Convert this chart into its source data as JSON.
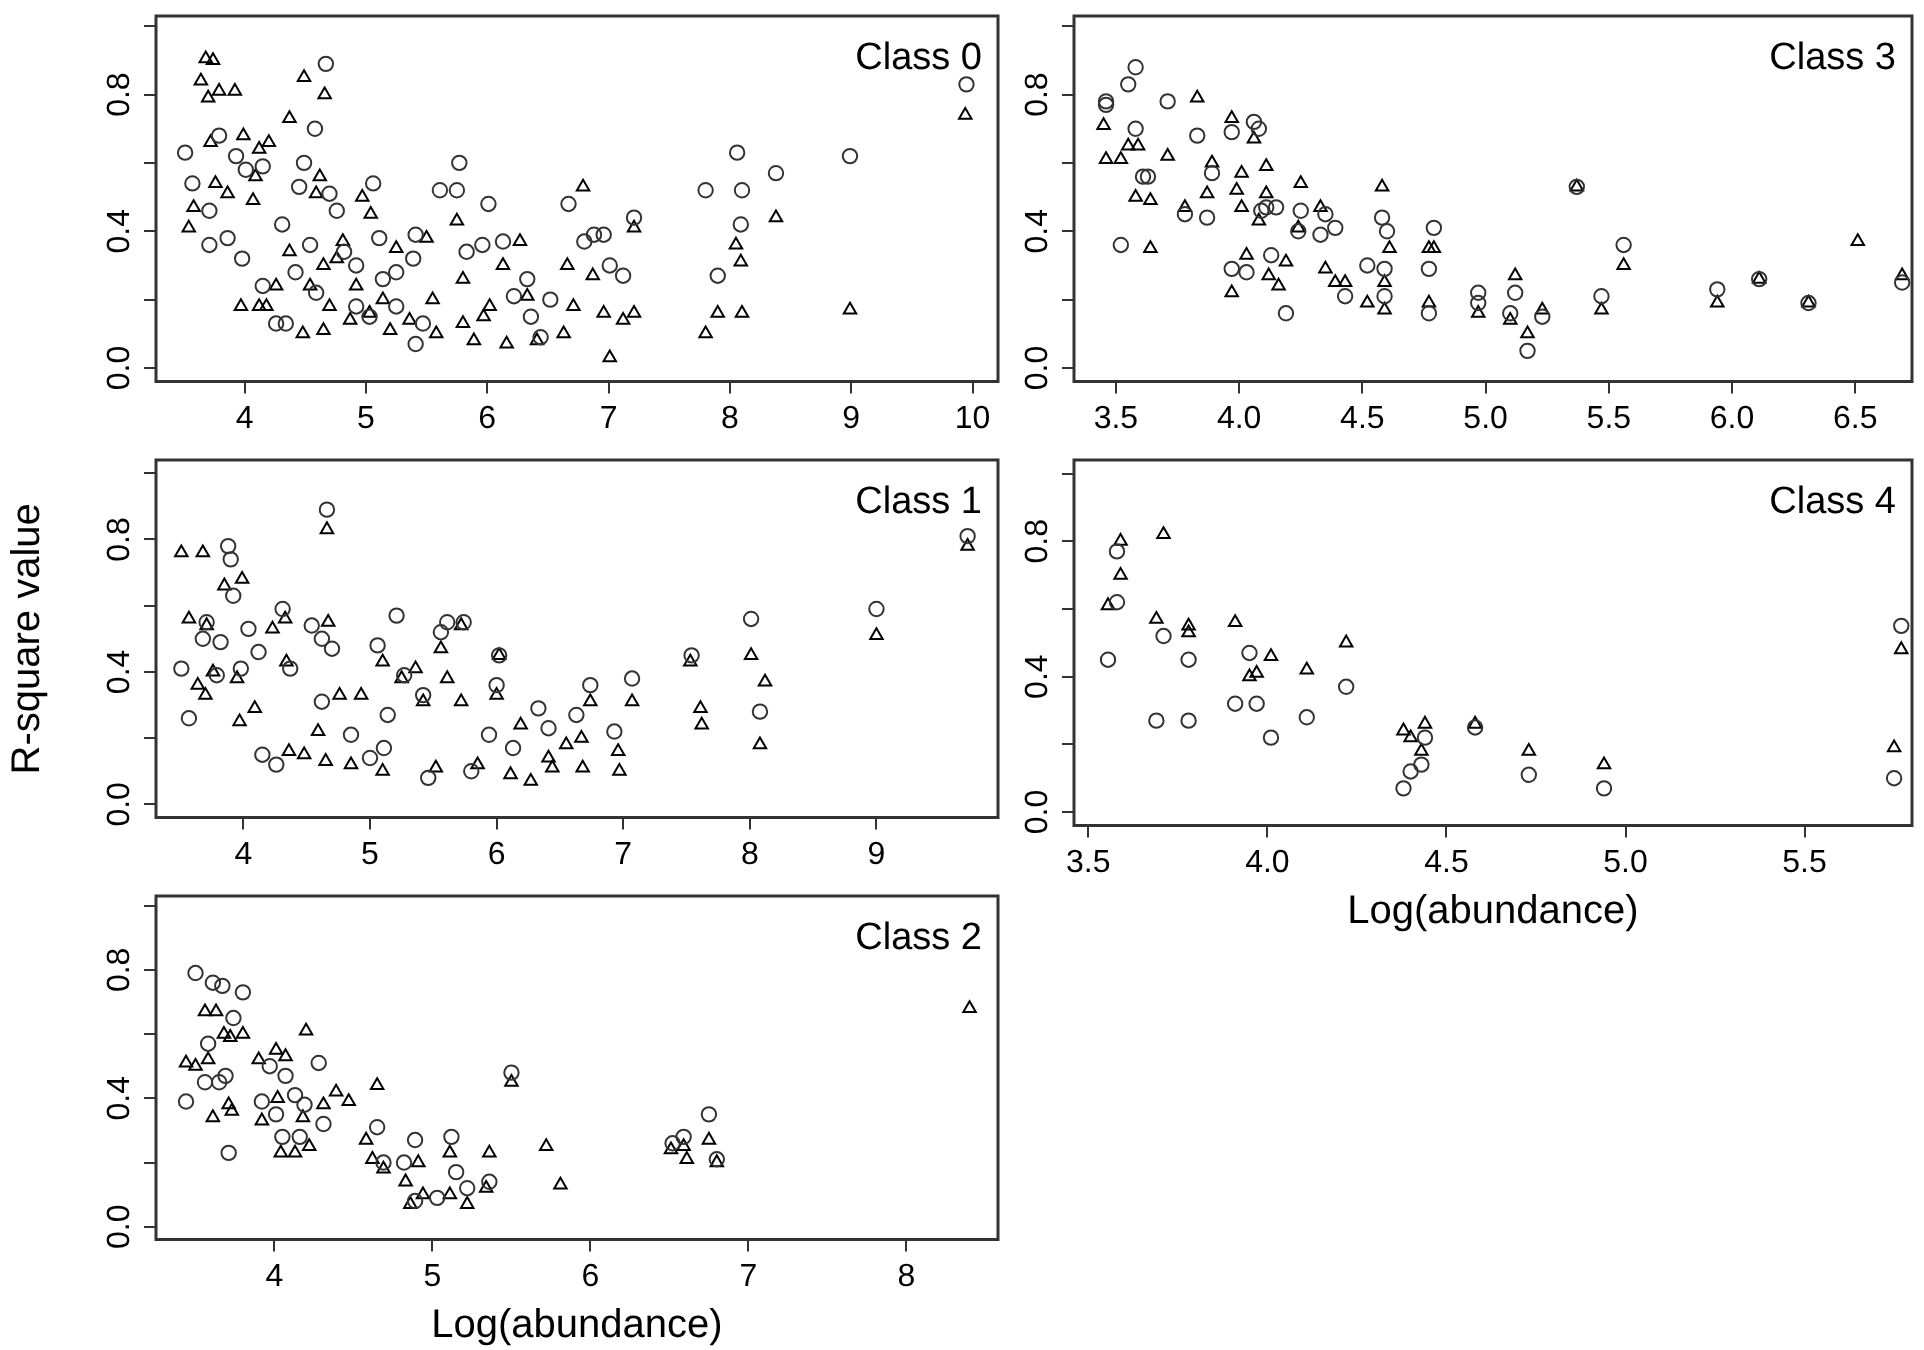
{
  "chart_data": [
    {
      "type": "scatter",
      "annotations": [
        "Class 0"
      ],
      "xlim": [
        3.27,
        10.21
      ],
      "ylim": [
        -0.04,
        1.03
      ],
      "xticks": [
        4,
        5,
        6,
        7,
        8,
        9,
        10
      ],
      "yticks": [
        {
          "value": 0,
          "label": "0.0"
        },
        {
          "value": 0.2,
          "label": null
        },
        {
          "value": 0.4,
          "label": "0.4"
        },
        {
          "value": 0.6,
          "label": null
        },
        {
          "value": 0.8,
          "label": "0.8"
        },
        {
          "value": 1,
          "label": null
        }
      ],
      "grid": false,
      "legend": false,
      "series": [
        {
          "marker": "circle",
          "color": "#333333",
          "x": [
            3.51,
            3.57,
            3.71,
            3.79,
            3.71,
            3.86,
            3.93,
            4.01,
            4.15,
            3.98,
            4.26,
            4.34,
            4.45,
            4.49,
            4.58,
            4.67,
            4.7,
            4.31,
            4.42,
            4.54,
            4.76,
            4.82,
            4.92,
            5.06,
            5.11,
            5.14,
            5.25,
            5.39,
            5.41,
            5.41,
            5.61,
            5.75,
            5.77,
            5.83,
            5.96,
            6.01,
            6.13,
            6.22,
            6.33,
            6.36,
            6.44,
            6.52,
            6.67,
            6.8,
            6.88,
            6.96,
            7.01,
            7.12,
            7.21,
            7.8,
            7.9,
            8.06,
            8.1,
            8.09,
            8.38,
            8.99,
            9.95,
            4.15,
            5.03,
            5.47,
            4.92,
            4.59,
            5.25
          ],
          "values": [
            0.63,
            0.54,
            0.36,
            0.68,
            0.46,
            0.38,
            0.62,
            0.58,
            0.59,
            0.32,
            0.13,
            0.13,
            0.53,
            0.6,
            0.7,
            0.89,
            0.51,
            0.42,
            0.28,
            0.36,
            0.46,
            0.34,
            0.3,
            0.54,
            0.38,
            0.26,
            0.18,
            0.32,
            0.07,
            0.39,
            0.52,
            0.52,
            0.6,
            0.34,
            0.36,
            0.48,
            0.37,
            0.21,
            0.26,
            0.15,
            0.09,
            0.2,
            0.48,
            0.37,
            0.39,
            0.39,
            0.3,
            0.27,
            0.44,
            0.52,
            0.27,
            0.63,
            0.52,
            0.42,
            0.57,
            0.62,
            0.83,
            0.24,
            0.15,
            0.13,
            0.18,
            0.22,
            0.28
          ]
        },
        {
          "marker": "triangle",
          "color": "#000000",
          "x": [
            3.68,
            3.74,
            3.64,
            3.7,
            3.79,
            3.92,
            3.72,
            3.99,
            4.2,
            4.12,
            4.37,
            4.49,
            4.66,
            3.58,
            3.54,
            3.76,
            3.86,
            4.09,
            4.07,
            3.97,
            4.18,
            4.48,
            4.62,
            4.59,
            4.97,
            5.04,
            4.81,
            4.65,
            4.54,
            4.7,
            4.65,
            4.87,
            5.03,
            5.2,
            5.25,
            5.5,
            5.55,
            5.36,
            5.58,
            5.75,
            5.8,
            5.89,
            5.97,
            6.13,
            6.16,
            6.27,
            6.33,
            6.41,
            6.66,
            6.79,
            6.71,
            6.63,
            6.87,
            6.96,
            7.01,
            7.12,
            7.21,
            7.21,
            7.8,
            7.9,
            8.05,
            8.09,
            8.1,
            8.38,
            8.99,
            9.94,
            4.26,
            4.37,
            4.76,
            4.92,
            5.14,
            5.8,
            6.02,
            4.12
          ],
          "values": [
            0.905,
            0.9,
            0.84,
            0.79,
            0.81,
            0.81,
            0.66,
            0.68,
            0.66,
            0.64,
            0.73,
            0.85,
            0.8,
            0.47,
            0.41,
            0.54,
            0.51,
            0.56,
            0.49,
            0.18,
            0.18,
            0.1,
            0.56,
            0.51,
            0.5,
            0.45,
            0.37,
            0.3,
            0.24,
            0.18,
            0.11,
            0.14,
            0.16,
            0.11,
            0.35,
            0.38,
            0.2,
            0.14,
            0.1,
            0.43,
            0.26,
            0.08,
            0.15,
            0.3,
            0.07,
            0.37,
            0.21,
            0.08,
            0.3,
            0.53,
            0.18,
            0.1,
            0.27,
            0.16,
            0.03,
            0.14,
            0.16,
            0.41,
            0.1,
            0.16,
            0.36,
            0.31,
            0.16,
            0.44,
            0.17,
            0.74,
            0.24,
            0.34,
            0.32,
            0.24,
            0.2,
            0.13,
            0.18,
            0.18
          ]
        }
      ]
    },
    {
      "type": "scatter",
      "annotations": [
        "Class 3"
      ],
      "xlim": [
        3.33,
        6.73
      ],
      "ylim": [
        -0.04,
        1.03
      ],
      "xticks": [
        3.5,
        {
          "value": 4,
          "label": "4.0"
        },
        4.5,
        {
          "value": 5,
          "label": "5.0"
        },
        5.5,
        {
          "value": 6,
          "label": "6.0"
        },
        6.5
      ],
      "yticks": [
        {
          "value": 0,
          "label": "0.0"
        },
        {
          "value": 0.2,
          "label": null
        },
        {
          "value": 0.4,
          "label": "0.4"
        },
        {
          "value": 0.6,
          "label": null
        },
        {
          "value": 0.8,
          "label": "0.8"
        },
        {
          "value": 1,
          "label": null
        }
      ],
      "grid": false,
      "legend": false,
      "series": [
        {
          "marker": "circle",
          "color": "#333333",
          "x": [
            3.46,
            3.46,
            3.55,
            3.58,
            3.58,
            3.52,
            3.61,
            3.63,
            3.71,
            3.78,
            3.83,
            3.87,
            3.89,
            3.97,
            3.97,
            4.03,
            4.06,
            4.08,
            4.09,
            4.11,
            4.15,
            4.13,
            4.19,
            4.25,
            4.24,
            4.33,
            4.35,
            4.39,
            4.43,
            4.52,
            4.58,
            4.6,
            4.59,
            4.59,
            4.77,
            4.79,
            4.77,
            4.97,
            4.97,
            5.1,
            5.12,
            5.17,
            5.23,
            5.37,
            5.47,
            5.56,
            5.94,
            6.11,
            6.31,
            6.69
          ],
          "values": [
            0.78,
            0.77,
            0.83,
            0.88,
            0.7,
            0.36,
            0.56,
            0.56,
            0.78,
            0.45,
            0.68,
            0.44,
            0.57,
            0.69,
            0.29,
            0.28,
            0.72,
            0.7,
            0.46,
            0.47,
            0.47,
            0.33,
            0.16,
            0.46,
            0.4,
            0.39,
            0.45,
            0.41,
            0.21,
            0.3,
            0.44,
            0.4,
            0.29,
            0.21,
            0.29,
            0.41,
            0.16,
            0.22,
            0.19,
            0.16,
            0.22,
            0.05,
            0.15,
            0.53,
            0.21,
            0.36,
            0.23,
            0.26,
            0.19,
            0.25
          ]
        },
        {
          "marker": "triangle",
          "color": "#000000",
          "x": [
            3.45,
            3.46,
            3.52,
            3.55,
            3.59,
            3.58,
            3.64,
            3.64,
            3.71,
            3.78,
            3.83,
            3.87,
            3.89,
            3.97,
            3.97,
            3.99,
            4.01,
            4.01,
            4.03,
            4.06,
            4.08,
            4.11,
            4.11,
            4.12,
            4.16,
            4.19,
            4.25,
            4.24,
            4.33,
            4.35,
            4.39,
            4.43,
            4.52,
            4.58,
            4.61,
            4.59,
            4.59,
            4.77,
            4.79,
            4.77,
            4.97,
            5.12,
            5.1,
            5.17,
            5.23,
            5.37,
            5.47,
            5.56,
            5.94,
            6.11,
            6.31,
            6.51,
            6.69
          ],
          "values": [
            0.71,
            0.61,
            0.61,
            0.65,
            0.65,
            0.5,
            0.49,
            0.35,
            0.62,
            0.47,
            0.79,
            0.51,
            0.6,
            0.73,
            0.22,
            0.52,
            0.57,
            0.47,
            0.33,
            0.67,
            0.43,
            0.59,
            0.51,
            0.27,
            0.24,
            0.31,
            0.54,
            0.41,
            0.47,
            0.29,
            0.25,
            0.25,
            0.19,
            0.53,
            0.35,
            0.25,
            0.17,
            0.35,
            0.35,
            0.19,
            0.16,
            0.27,
            0.14,
            0.1,
            0.17,
            0.53,
            0.17,
            0.3,
            0.19,
            0.26,
            0.19,
            0.37,
            0.27
          ]
        }
      ]
    },
    {
      "type": "scatter",
      "annotations": [
        "Class 1"
      ],
      "ylabel": "R-square value",
      "xlim": [
        3.31,
        9.96
      ],
      "ylim": [
        -0.04,
        1.04
      ],
      "xticks": [
        4,
        5,
        6,
        7,
        8,
        9
      ],
      "yticks": [
        {
          "value": 0,
          "label": "0.0"
        },
        {
          "value": 0.2,
          "label": null
        },
        {
          "value": 0.4,
          "label": "0.4"
        },
        {
          "value": 0.6,
          "label": null
        },
        {
          "value": 0.8,
          "label": "0.8"
        },
        {
          "value": 1,
          "label": null
        }
      ],
      "grid": false,
      "legend": false,
      "series": [
        {
          "marker": "circle",
          "color": "#333333",
          "x": [
            3.51,
            3.57,
            3.68,
            3.71,
            3.82,
            3.88,
            3.9,
            3.92,
            3.79,
            4.04,
            3.98,
            4.12,
            4.15,
            4.26,
            4.31,
            4.37,
            4.54,
            4.62,
            4.66,
            4.7,
            4.62,
            4.85,
            5,
            5.06,
            5.11,
            5.21,
            5.27,
            5.14,
            5.42,
            5.46,
            5.56,
            5.61,
            5.74,
            5.8,
            6,
            6.02,
            5.94,
            6.13,
            6.33,
            6.41,
            6.63,
            6.74,
            6.93,
            7.07,
            7.54,
            8.01,
            8.08,
            9,
            9.72
          ],
          "values": [
            0.41,
            0.26,
            0.5,
            0.55,
            0.49,
            0.78,
            0.74,
            0.63,
            0.39,
            0.53,
            0.41,
            0.46,
            0.15,
            0.12,
            0.59,
            0.41,
            0.54,
            0.5,
            0.89,
            0.47,
            0.31,
            0.21,
            0.14,
            0.48,
            0.17,
            0.57,
            0.39,
            0.27,
            0.33,
            0.08,
            0.52,
            0.55,
            0.55,
            0.1,
            0.36,
            0.45,
            0.21,
            0.17,
            0.29,
            0.23,
            0.27,
            0.36,
            0.22,
            0.38,
            0.45,
            0.56,
            0.28,
            0.59,
            0.81
          ]
        },
        {
          "marker": "triangle",
          "color": "#000000",
          "x": [
            3.51,
            3.68,
            3.57,
            3.71,
            3.64,
            3.7,
            3.76,
            3.85,
            3.99,
            3.95,
            3.97,
            4.09,
            4.23,
            4.33,
            4.34,
            4.36,
            4.48,
            4.65,
            4.66,
            4.67,
            4.59,
            4.76,
            4.85,
            4.93,
            5.1,
            5.1,
            5.25,
            5.36,
            5.42,
            5.52,
            5.56,
            5.61,
            5.72,
            5.72,
            5.85,
            6,
            6.02,
            6.11,
            6.19,
            6.27,
            6.41,
            6.44,
            6.55,
            6.67,
            6.68,
            6.74,
            6.96,
            6.97,
            7.07,
            7.53,
            7.61,
            7.62,
            8.01,
            8.12,
            8.08,
            9,
            9.72
          ],
          "values": [
            0.76,
            0.76,
            0.56,
            0.54,
            0.36,
            0.33,
            0.4,
            0.66,
            0.68,
            0.38,
            0.25,
            0.29,
            0.53,
            0.56,
            0.43,
            0.16,
            0.15,
            0.13,
            0.83,
            0.55,
            0.22,
            0.33,
            0.12,
            0.33,
            0.1,
            0.43,
            0.38,
            0.41,
            0.31,
            0.11,
            0.47,
            0.38,
            0.54,
            0.31,
            0.12,
            0.33,
            0.45,
            0.09,
            0.24,
            0.07,
            0.14,
            0.11,
            0.18,
            0.2,
            0.11,
            0.31,
            0.16,
            0.1,
            0.31,
            0.43,
            0.29,
            0.24,
            0.45,
            0.37,
            0.18,
            0.51,
            0.78
          ]
        }
      ]
    },
    {
      "type": "scatter",
      "annotations": [
        "Class 4"
      ],
      "xlabel": "Log(abundance)",
      "xlim": [
        3.46,
        5.8
      ],
      "ylim": [
        -0.04,
        1.04
      ],
      "xticks": [
        3.5,
        {
          "value": 4,
          "label": "4.0"
        },
        4.5,
        {
          "value": 5,
          "label": "5.0"
        },
        5.5
      ],
      "yticks": [
        {
          "value": 0,
          "label": "0.0"
        },
        {
          "value": 0.2,
          "label": null
        },
        {
          "value": 0.4,
          "label": "0.4"
        },
        {
          "value": 0.6,
          "label": null
        },
        {
          "value": 0.8,
          "label": "0.8"
        },
        {
          "value": 1,
          "label": null
        }
      ],
      "grid": false,
      "legend": false,
      "series": [
        {
          "marker": "circle",
          "color": "#333333",
          "x": [
            3.555,
            3.58,
            3.58,
            3.69,
            3.71,
            3.78,
            3.78,
            3.91,
            3.95,
            3.97,
            4.01,
            4.11,
            4.22,
            4.38,
            4.4,
            4.43,
            4.44,
            4.58,
            4.73,
            4.94,
            5.75,
            5.77
          ],
          "values": [
            0.45,
            0.77,
            0.62,
            0.27,
            0.52,
            0.45,
            0.27,
            0.32,
            0.47,
            0.32,
            0.22,
            0.28,
            0.37,
            0.07,
            0.12,
            0.14,
            0.22,
            0.25,
            0.11,
            0.07,
            0.1,
            0.55
          ]
        },
        {
          "marker": "triangle",
          "color": "#000000",
          "x": [
            3.555,
            3.59,
            3.59,
            3.71,
            3.69,
            3.78,
            3.78,
            3.91,
            3.95,
            3.97,
            4.01,
            4.11,
            4.22,
            4.38,
            4.4,
            4.44,
            4.43,
            4.58,
            4.73,
            4.94,
            5.75,
            5.77
          ],
          "values": [
            0.61,
            0.8,
            0.7,
            0.82,
            0.57,
            0.55,
            0.53,
            0.56,
            0.4,
            0.41,
            0.46,
            0.42,
            0.5,
            0.24,
            0.22,
            0.26,
            0.18,
            0.26,
            0.18,
            0.14,
            0.19,
            0.48
          ]
        }
      ]
    },
    {
      "type": "scatter",
      "annotations": [
        "Class 2"
      ],
      "xlabel": "Log(abundance)",
      "xlim": [
        3.25,
        8.58
      ],
      "ylim": [
        -0.04,
        1.03
      ],
      "xticks": [
        4,
        5,
        6,
        7,
        8
      ],
      "yticks": [
        {
          "value": 0,
          "label": "0.0"
        },
        {
          "value": 0.2,
          "label": null
        },
        {
          "value": 0.4,
          "label": "0.4"
        },
        {
          "value": 0.6,
          "label": null
        },
        {
          "value": 0.8,
          "label": "0.8"
        },
        {
          "value": 1,
          "label": null
        }
      ],
      "grid": false,
      "legend": false,
      "series": [
        {
          "marker": "circle",
          "color": "#333333",
          "x": [
            3.44,
            3.5,
            3.56,
            3.58,
            3.61,
            3.67,
            3.65,
            3.71,
            3.69,
            3.74,
            3.8,
            3.92,
            4.01,
            3.97,
            4.05,
            4.07,
            4.13,
            4.16,
            4.19,
            4.28,
            4.31,
            4.65,
            4.69,
            4.82,
            4.89,
            4.89,
            5.03,
            5.12,
            5.15,
            5.22,
            5.36,
            5.5,
            6.52,
            6.59,
            6.75,
            6.8
          ],
          "values": [
            0.39,
            0.79,
            0.45,
            0.57,
            0.76,
            0.75,
            0.45,
            0.23,
            0.47,
            0.65,
            0.73,
            0.39,
            0.35,
            0.5,
            0.28,
            0.47,
            0.41,
            0.28,
            0.38,
            0.51,
            0.32,
            0.31,
            0.2,
            0.2,
            0.27,
            0.08,
            0.09,
            0.28,
            0.17,
            0.12,
            0.14,
            0.48,
            0.26,
            0.28,
            0.35,
            0.21
          ]
        },
        {
          "marker": "triangle",
          "color": "#000000",
          "x": [
            3.44,
            3.5,
            3.56,
            3.63,
            3.58,
            3.61,
            3.68,
            3.72,
            3.8,
            3.73,
            3.71,
            3.92,
            3.9,
            4.01,
            4.07,
            4.04,
            4.13,
            4.02,
            4.18,
            4.2,
            4.22,
            4.31,
            4.39,
            4.47,
            4.58,
            4.62,
            4.65,
            4.69,
            4.83,
            4.86,
            4.91,
            4.94,
            5.11,
            5.11,
            5.22,
            5.34,
            5.36,
            5.5,
            5.72,
            5.81,
            6.51,
            6.59,
            6.61,
            6.75,
            6.8,
            8.4
          ],
          "values": [
            0.51,
            0.5,
            0.67,
            0.67,
            0.52,
            0.34,
            0.6,
            0.59,
            0.6,
            0.36,
            0.38,
            0.33,
            0.52,
            0.55,
            0.53,
            0.23,
            0.23,
            0.4,
            0.34,
            0.61,
            0.25,
            0.38,
            0.42,
            0.39,
            0.27,
            0.21,
            0.44,
            0.18,
            0.14,
            0.07,
            0.2,
            0.1,
            0.1,
            0.23,
            0.07,
            0.12,
            0.23,
            0.45,
            0.25,
            0.13,
            0.24,
            0.25,
            0.21,
            0.27,
            0.2,
            0.68
          ]
        }
      ]
    }
  ]
}
